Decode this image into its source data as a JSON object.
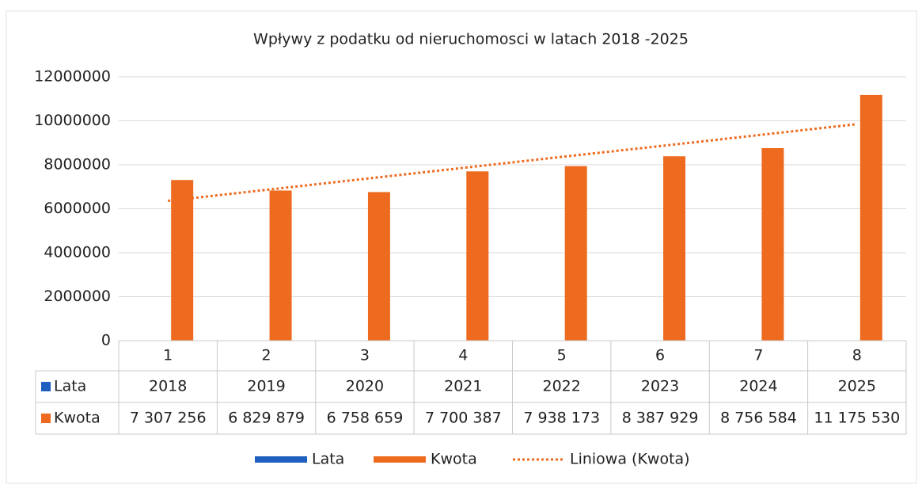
{
  "chart_data": {
    "type": "bar",
    "title": "Wpływy z podatku od nieruchomosci w latach 2018 -2025",
    "categories": [
      "1",
      "2",
      "3",
      "4",
      "5",
      "6",
      "7",
      "8"
    ],
    "series": [
      {
        "name": "Lata",
        "color": "#1f5fbf",
        "values": [
          2018,
          2019,
          2020,
          2021,
          2022,
          2023,
          2024,
          2025
        ]
      },
      {
        "name": "Kwota",
        "color": "#ed6a1f",
        "values": [
          7307256,
          6829879,
          6758659,
          7700387,
          7938173,
          8387929,
          8756584,
          11175530
        ],
        "value_labels": [
          "7 307 256",
          "6 829 879",
          "6 758 659",
          "7 700 387",
          "7 938 173",
          "8 387 929",
          "8 756 584",
          "11 175 530"
        ]
      },
      {
        "name": "Liniowa (Kwota)",
        "type": "line",
        "dashed": true,
        "color": "#ed6a1f",
        "values": [
          6360000,
          6860000,
          7360000,
          7860000,
          8360000,
          8850000,
          9350000,
          9850000
        ]
      }
    ],
    "ylim": [
      0,
      12000000
    ],
    "yticks": [
      0,
      2000000,
      4000000,
      6000000,
      8000000,
      10000000,
      12000000
    ],
    "grid": true,
    "data_table": true,
    "legend": "bottom"
  }
}
